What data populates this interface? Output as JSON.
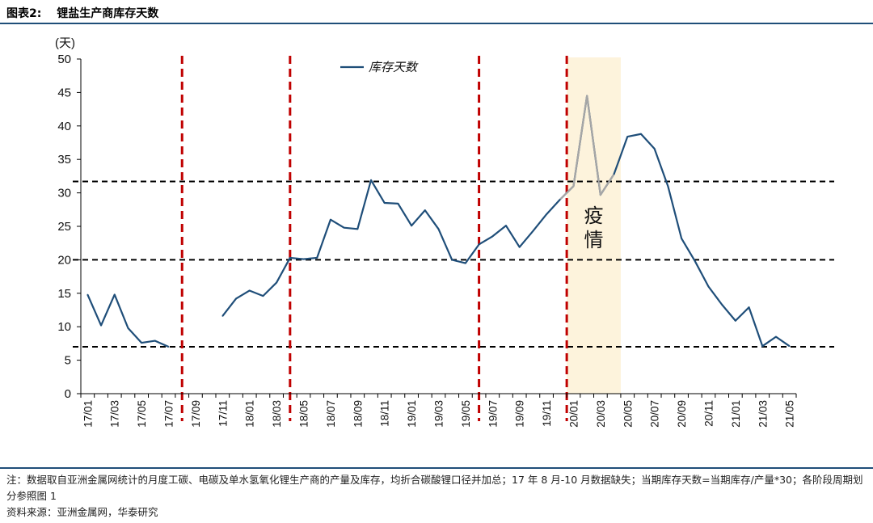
{
  "header": {
    "figure_label": "图表2:",
    "title": "锂盐生产商库存天数"
  },
  "notes": {
    "note": "注：数据取自亚洲金属网统计的月度工碳、电碳及单水氢氧化锂生产商的产量及库存，均折合碳酸锂口径并加总；17 年 8 月-10 月数据缺失；当期库存天数=当期库存/产量*30；各阶段周期划分参照图 1",
    "source": "资料来源：亚洲金属网，华泰研究"
  },
  "colors": {
    "line": "#1f4e79",
    "line_highlight": "#a6a6a6",
    "red_dashed": "#c00000",
    "black_dashed": "#000000",
    "shade": "#fdf3dc",
    "rule": "#1f4e79"
  },
  "chart_data": {
    "type": "line",
    "title": "锂盐生产商库存天数",
    "ylabel": "(天)",
    "ylim": [
      0,
      50
    ],
    "yticks": [
      0,
      5,
      10,
      15,
      20,
      25,
      30,
      35,
      40,
      45,
      50
    ],
    "x": [
      "17/01",
      "17/02",
      "17/03",
      "17/04",
      "17/05",
      "17/06",
      "17/07",
      "17/08",
      "17/09",
      "17/10",
      "17/11",
      "17/12",
      "18/01",
      "18/02",
      "18/03",
      "18/04",
      "18/05",
      "18/06",
      "18/07",
      "18/08",
      "18/09",
      "18/10",
      "18/11",
      "18/12",
      "19/01",
      "19/02",
      "19/03",
      "19/04",
      "19/05",
      "19/06",
      "19/07",
      "19/08",
      "19/09",
      "19/10",
      "19/11",
      "19/12",
      "20/01",
      "20/02",
      "20/03",
      "20/04",
      "20/05",
      "20/06",
      "20/07",
      "20/08",
      "20/09",
      "20/10",
      "20/11",
      "20/12",
      "21/01",
      "21/02",
      "21/03",
      "21/04",
      "21/05"
    ],
    "xtick_labels": [
      "17/01",
      "17/03",
      "17/05",
      "17/07",
      "17/09",
      "17/11",
      "18/01",
      "18/03",
      "18/05",
      "18/07",
      "18/09",
      "18/11",
      "19/01",
      "19/03",
      "19/05",
      "19/07",
      "19/09",
      "19/11",
      "20/01",
      "20/03",
      "20/05",
      "20/07",
      "20/09",
      "20/11",
      "21/01",
      "21/03",
      "21/05"
    ],
    "series": [
      {
        "name": "库存天数",
        "values": [
          14.8,
          10.2,
          14.8,
          9.8,
          7.6,
          7.9,
          7.0,
          null,
          null,
          null,
          11.6,
          14.2,
          15.4,
          14.6,
          16.6,
          20.3,
          20.1,
          20.3,
          26.0,
          24.8,
          24.6,
          31.9,
          28.5,
          28.4,
          25.1,
          27.4,
          24.6,
          20.0,
          19.5,
          22.3,
          23.5,
          25.1,
          21.9,
          24.3,
          26.8,
          29.0,
          31.0,
          44.5,
          29.7,
          32.8,
          38.4,
          38.8,
          36.6,
          31.0,
          23.2,
          19.8,
          16.0,
          13.3,
          10.9,
          12.9,
          7.1,
          8.5,
          7.1
        ]
      }
    ],
    "highlight_segment": {
      "series": "库存天数",
      "from": "19/12",
      "to": "20/04"
    },
    "shaded_period": {
      "from": "20/01",
      "to": "20/04",
      "label": "疫情"
    },
    "vertical_dashed_lines": [
      "17/08",
      "18/04",
      "19/06",
      "19/12"
    ],
    "horizontal_dashed_lines": [
      31.7,
      20.0,
      7.0
    ],
    "legend": {
      "label": "库存天数",
      "placement": "top-center"
    },
    "annotations": [
      {
        "text": "疫情",
        "period": "20/01-20/04"
      }
    ]
  }
}
